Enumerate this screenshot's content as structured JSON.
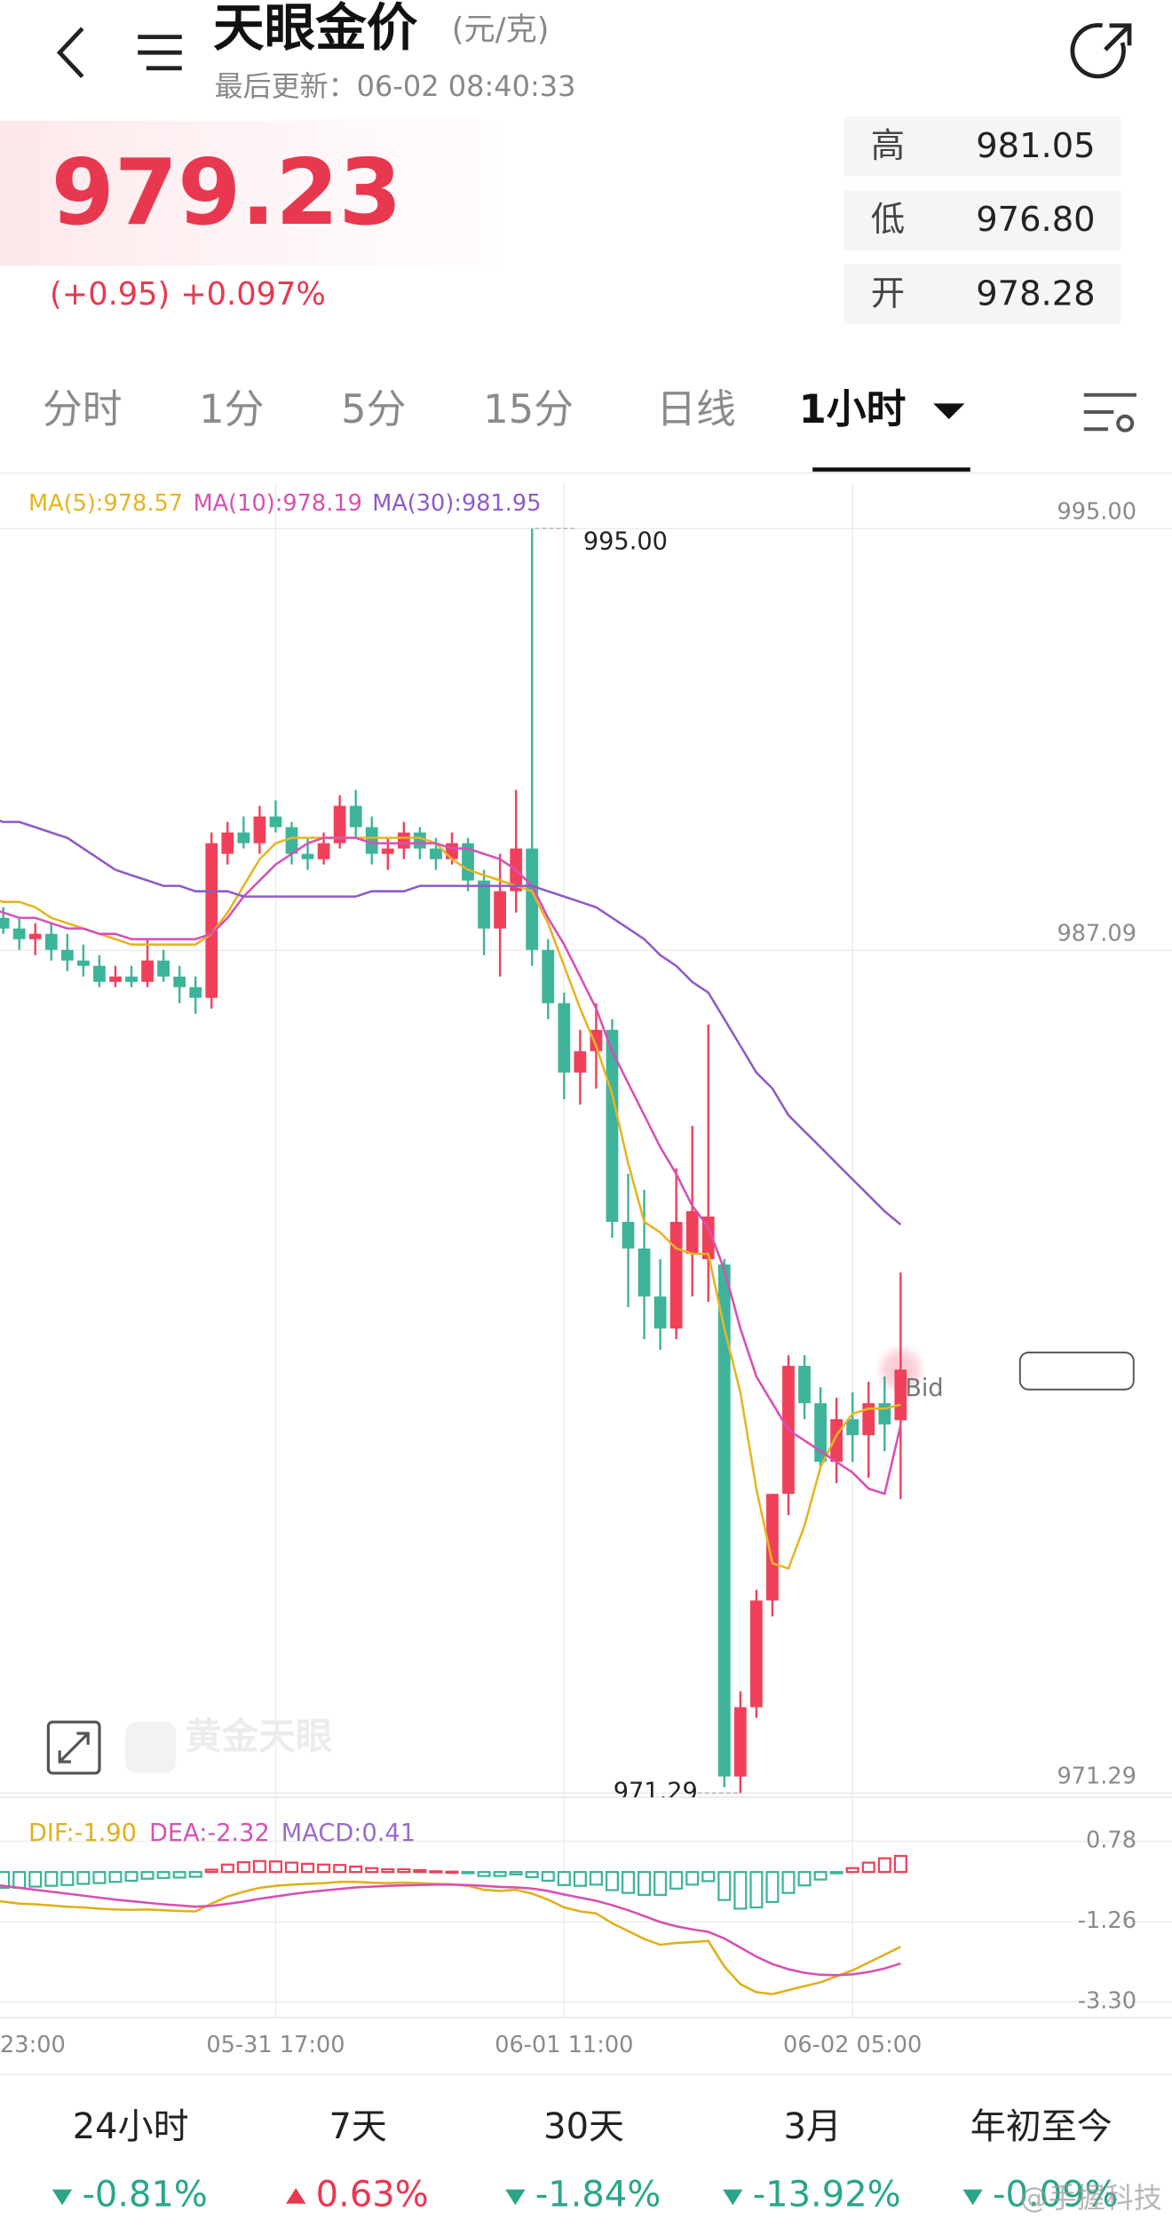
{
  "header": {
    "title": "天眼金价",
    "unit": "(元/克)",
    "updated": "最后更新：06-02 08:40:33"
  },
  "quote": {
    "price": "979.23",
    "change": "(+0.95)",
    "change_pct": "+0.097%",
    "stats": [
      {
        "label": "高",
        "value": "981.05"
      },
      {
        "label": "低",
        "value": "976.80"
      },
      {
        "label": "开",
        "value": "978.28"
      }
    ]
  },
  "tabs": [
    "分时",
    "1分",
    "5分",
    "15分",
    "日线",
    "1小时"
  ],
  "active_tab": 5,
  "chart_data": {
    "type": "candlestick",
    "up_color": "#f0405a",
    "down_color": "#3db39a",
    "categories": [
      "23:00",
      null,
      null,
      null,
      null,
      null,
      null,
      null,
      null,
      null,
      null,
      null,
      null,
      null,
      null,
      null,
      null,
      null,
      "05-31 17:00",
      null,
      null,
      null,
      null,
      null,
      null,
      null,
      null,
      null,
      null,
      null,
      null,
      null,
      null,
      null,
      null,
      null,
      "06-01 11:00",
      null,
      null,
      null,
      null,
      null,
      null,
      null,
      null,
      null,
      null,
      null,
      null,
      null,
      null,
      null,
      null,
      null,
      "06-02 05:00",
      null,
      null,
      null
    ],
    "open": [
      987.8,
      987.7,
      987.5,
      987.3,
      987.4,
      987.1,
      986.9,
      986.8,
      986.5,
      986.6,
      986.5,
      986.9,
      986.6,
      986.4,
      986.2,
      988.9,
      989.3,
      989.1,
      989.6,
      989.4,
      988.9,
      988.8,
      989.1,
      989.8,
      989.4,
      988.9,
      989.0,
      989.3,
      989.0,
      988.8,
      989.1,
      988.4,
      987.5,
      988.2,
      989.0,
      987.1,
      986.1,
      984.8,
      985.2,
      985.6,
      982.0,
      981.5,
      980.6,
      980.0,
      981.4,
      981.3,
      981.2,
      971.6,
      972.9,
      974.9,
      976.9,
      979.3,
      978.6,
      977.5,
      978.3,
      978.0,
      978.6,
      978.28
    ],
    "high": [
      988.0,
      987.9,
      987.7,
      987.6,
      987.6,
      987.4,
      987.2,
      987.0,
      986.8,
      986.8,
      987.3,
      987.1,
      986.8,
      986.6,
      989.3,
      989.5,
      989.6,
      989.8,
      989.9,
      989.5,
      989.2,
      989.3,
      990.0,
      990.1,
      989.6,
      989.2,
      989.5,
      989.4,
      989.2,
      989.3,
      989.2,
      988.6,
      988.9,
      990.1,
      995.0,
      987.3,
      986.3,
      985.6,
      986.1,
      985.8,
      982.9,
      982.6,
      981.3,
      983.0,
      983.8,
      985.7,
      981.3,
      973.2,
      975.1,
      976.9,
      979.5,
      979.5,
      978.9,
      978.7,
      978.8,
      979.0,
      979.1,
      981.05
    ],
    "low": [
      987.3,
      987.4,
      987.1,
      987.0,
      986.9,
      986.7,
      986.6,
      986.4,
      986.4,
      986.4,
      986.4,
      986.5,
      986.1,
      985.9,
      986.0,
      988.7,
      989.0,
      988.9,
      989.3,
      988.7,
      988.6,
      988.7,
      989.0,
      989.2,
      988.7,
      988.6,
      988.8,
      988.8,
      988.6,
      988.7,
      988.2,
      987.0,
      986.6,
      987.8,
      986.8,
      985.8,
      984.3,
      984.2,
      984.5,
      981.7,
      980.4,
      979.8,
      979.6,
      979.8,
      980.6,
      980.5,
      971.4,
      971.29,
      972.7,
      974.6,
      976.5,
      978.3,
      977.4,
      977.1,
      977.5,
      977.2,
      977.7,
      976.8
    ],
    "close": [
      987.6,
      987.5,
      987.3,
      987.4,
      987.1,
      986.9,
      986.8,
      986.5,
      986.6,
      986.5,
      986.9,
      986.6,
      986.4,
      986.2,
      989.1,
      989.3,
      989.1,
      989.6,
      989.4,
      988.9,
      988.8,
      989.1,
      989.8,
      989.4,
      988.9,
      989.0,
      989.3,
      989.0,
      988.8,
      989.1,
      988.4,
      987.5,
      988.2,
      989.0,
      987.1,
      986.1,
      984.8,
      985.2,
      985.6,
      982.0,
      981.5,
      980.6,
      980.0,
      982.0,
      982.2,
      982.1,
      971.6,
      972.9,
      974.9,
      976.9,
      979.3,
      978.6,
      977.5,
      978.3,
      978.0,
      978.6,
      978.2,
      979.23
    ],
    "series": [
      {
        "color": "#e6b422",
        "values": [
          988.1,
          988.0,
          988.0,
          987.9,
          987.7,
          987.6,
          987.5,
          987.4,
          987.3,
          987.2,
          987.2,
          987.2,
          987.2,
          987.2,
          987.4,
          987.8,
          988.3,
          988.8,
          989.1,
          989.2,
          989.2,
          989.2,
          989.2,
          989.2,
          989.2,
          989.2,
          989.2,
          989.2,
          989.1,
          988.8,
          988.6,
          988.5,
          988.4,
          988.3,
          988.2,
          987.6,
          986.8,
          986.0,
          985.3,
          984.4,
          983.1,
          982.0,
          981.8,
          981.5,
          981.4,
          981.4,
          980.0,
          978.8,
          977.0,
          975.6,
          975.5,
          976.3,
          977.4,
          978.0,
          978.4,
          978.5,
          978.5,
          978.57
        ]
      },
      {
        "color": "#d94fb5",
        "values": [
          987.9,
          987.8,
          987.7,
          987.7,
          987.6,
          987.5,
          987.5,
          987.4,
          987.4,
          987.3,
          987.3,
          987.3,
          987.3,
          987.3,
          987.4,
          987.7,
          988.1,
          988.4,
          988.7,
          988.9,
          989.1,
          989.2,
          989.2,
          989.2,
          989.1,
          989.1,
          989.1,
          989.1,
          989.1,
          989.0,
          989.0,
          988.9,
          988.8,
          988.6,
          988.3,
          987.7,
          987.2,
          986.6,
          986.0,
          985.2,
          984.6,
          984.0,
          983.4,
          982.9,
          982.3,
          981.9,
          981.1,
          980.0,
          979.1,
          978.6,
          978.1,
          977.9,
          977.7,
          977.5,
          977.3,
          977.0,
          976.9,
          978.19
        ]
      },
      {
        "color": "#8e5bc7",
        "values": [
          989.6,
          989.5,
          989.5,
          989.4,
          989.3,
          989.2,
          989.0,
          988.8,
          988.6,
          988.5,
          988.4,
          988.3,
          988.3,
          988.2,
          988.2,
          988.2,
          988.1,
          988.1,
          988.1,
          988.1,
          988.1,
          988.1,
          988.1,
          988.1,
          988.2,
          988.2,
          988.2,
          988.3,
          988.3,
          988.3,
          988.3,
          988.3,
          988.3,
          988.3,
          988.3,
          988.2,
          988.1,
          988.0,
          987.9,
          987.7,
          987.5,
          987.3,
          987.0,
          986.8,
          986.5,
          986.3,
          985.8,
          985.3,
          984.8,
          984.5,
          984.0,
          983.7,
          983.4,
          983.1,
          982.8,
          982.5,
          982.2,
          981.95
        ]
      }
    ],
    "legend": [
      {
        "text": "MA(5):978.57",
        "color": "#e6b422"
      },
      {
        "text": "MA(10):978.19",
        "color": "#d94fb5"
      },
      {
        "text": "MA(30):981.95",
        "color": "#8e5bc7"
      }
    ],
    "ylim": [
      971.29,
      995.0
    ],
    "yticks": [
      {
        "value": 995.0,
        "label": "995.00"
      },
      987.09,
      971.29
    ],
    "high_label": "995.00",
    "low_label": "971.29",
    "bid_label": "Bid",
    "watermark": "黄金天眼",
    "macd": {
      "legend": [
        {
          "text": "DIF:-1.90",
          "color": "#e0b01c"
        },
        {
          "text": "DEA:-2.32",
          "color": "#d84fb5"
        },
        {
          "text": "MACD:0.41",
          "color": "#9b6bc9"
        }
      ],
      "dif": [
        -0.7,
        -0.75,
        -0.8,
        -0.82,
        -0.85,
        -0.88,
        -0.9,
        -0.93,
        -0.95,
        -0.96,
        -0.95,
        -0.97,
        -0.99,
        -1.0,
        -0.8,
        -0.62,
        -0.5,
        -0.4,
        -0.35,
        -0.32,
        -0.3,
        -0.28,
        -0.25,
        -0.25,
        -0.27,
        -0.28,
        -0.27,
        -0.28,
        -0.3,
        -0.31,
        -0.35,
        -0.45,
        -0.48,
        -0.45,
        -0.55,
        -0.7,
        -0.9,
        -1.0,
        -1.05,
        -1.3,
        -1.5,
        -1.7,
        -1.85,
        -1.8,
        -1.78,
        -1.75,
        -2.4,
        -2.85,
        -3.05,
        -3.1,
        -3.0,
        -2.9,
        -2.8,
        -2.65,
        -2.5,
        -2.3,
        -2.1,
        -1.9
      ],
      "dea": [
        -0.3,
        -0.35,
        -0.4,
        -0.45,
        -0.5,
        -0.55,
        -0.6,
        -0.65,
        -0.7,
        -0.74,
        -0.78,
        -0.82,
        -0.85,
        -0.88,
        -0.86,
        -0.81,
        -0.75,
        -0.68,
        -0.62,
        -0.56,
        -0.51,
        -0.47,
        -0.43,
        -0.39,
        -0.37,
        -0.35,
        -0.34,
        -0.33,
        -0.32,
        -0.32,
        -0.33,
        -0.35,
        -0.38,
        -0.39,
        -0.42,
        -0.48,
        -0.57,
        -0.65,
        -0.73,
        -0.84,
        -0.97,
        -1.12,
        -1.27,
        -1.38,
        -1.46,
        -1.52,
        -1.69,
        -1.92,
        -2.15,
        -2.34,
        -2.47,
        -2.56,
        -2.61,
        -2.62,
        -2.6,
        -2.54,
        -2.45,
        -2.32
      ],
      "hist": [
        -0.4,
        -0.4,
        -0.4,
        -0.37,
        -0.35,
        -0.33,
        -0.3,
        -0.28,
        -0.25,
        -0.22,
        -0.17,
        -0.15,
        -0.14,
        -0.12,
        0.06,
        0.19,
        0.25,
        0.28,
        0.27,
        0.24,
        0.21,
        0.19,
        0.18,
        0.14,
        0.1,
        0.07,
        0.07,
        0.05,
        0.02,
        0.01,
        -0.02,
        -0.1,
        -0.1,
        -0.06,
        -0.13,
        -0.22,
        -0.33,
        -0.35,
        -0.32,
        -0.46,
        -0.53,
        -0.58,
        -0.58,
        -0.42,
        -0.32,
        -0.23,
        -0.71,
        -0.93,
        -0.9,
        -0.76,
        -0.53,
        -0.34,
        -0.19,
        -0.03,
        0.1,
        0.24,
        0.35,
        0.41
      ],
      "ylim": [
        -3.3,
        0.78
      ],
      "yticks": [
        0.78,
        -1.26,
        {
          "value": -3.3,
          "label": "-3.30"
        }
      ]
    }
  },
  "periods": [
    {
      "label": "24小时",
      "change": "-0.81%",
      "direction": "down"
    },
    {
      "label": "7天",
      "change": "0.63%",
      "direction": "up"
    },
    {
      "label": "30天",
      "change": "-1.84%",
      "direction": "down"
    },
    {
      "label": "3月",
      "change": "-13.92%",
      "direction": "down"
    },
    {
      "label": "年初至今",
      "change": "-0.09%",
      "direction": "down"
    }
  ],
  "overlay": "@手握科技"
}
